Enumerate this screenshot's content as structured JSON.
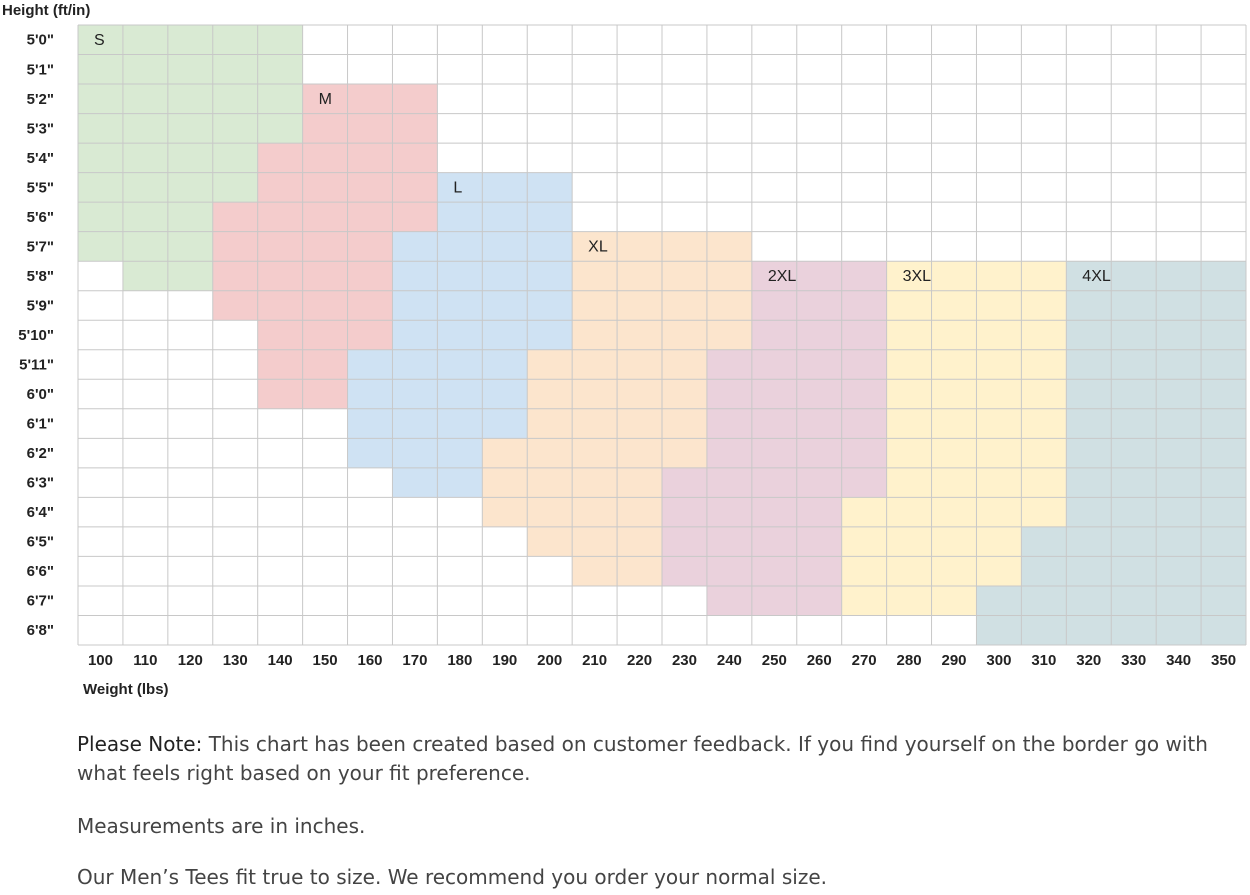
{
  "y_axis_label": "Height (ft/in)",
  "x_axis_label": "Weight (lbs)",
  "heights": [
    "5'0\"",
    "5'1\"",
    "5'2\"",
    "5'3\"",
    "5'4\"",
    "5'5\"",
    "5'6\"",
    "5'7\"",
    "5'8\"",
    "5'9\"",
    "5'10\"",
    "5'11\"",
    "6'0\"",
    "6'1\"",
    "6'2\"",
    "6'3\"",
    "6'4\"",
    "6'5\"",
    "6'6\"",
    "6'7\"",
    "6'8\""
  ],
  "weights": [
    100,
    110,
    120,
    130,
    140,
    150,
    160,
    170,
    180,
    190,
    200,
    210,
    220,
    230,
    240,
    250,
    260,
    270,
    280,
    290,
    300,
    310,
    320,
    330,
    340,
    350
  ],
  "sizes": [
    {
      "name": "S",
      "color": "#d9ead3",
      "spans": [
        [
          "5'0\"",
          100,
          140
        ],
        [
          "5'1\"",
          100,
          140
        ],
        [
          "5'2\"",
          100,
          140
        ],
        [
          "5'3\"",
          100,
          140
        ],
        [
          "5'4\"",
          100,
          130
        ],
        [
          "5'5\"",
          100,
          130
        ],
        [
          "5'6\"",
          100,
          120
        ],
        [
          "5'7\"",
          100,
          120
        ],
        [
          "5'8\"",
          110,
          120
        ]
      ]
    },
    {
      "name": "M",
      "color": "#f4cccc",
      "spans": [
        [
          "5'2\"",
          150,
          170
        ],
        [
          "5'3\"",
          150,
          170
        ],
        [
          "5'4\"",
          140,
          170
        ],
        [
          "5'5\"",
          140,
          170
        ],
        [
          "5'6\"",
          130,
          170
        ],
        [
          "5'7\"",
          130,
          160
        ],
        [
          "5'8\"",
          130,
          160
        ],
        [
          "5'9\"",
          130,
          160
        ],
        [
          "5'10\"",
          140,
          160
        ],
        [
          "5'11\"",
          140,
          150
        ],
        [
          "6'0\"",
          140,
          150
        ]
      ]
    },
    {
      "name": "L",
      "color": "#cfe2f3",
      "spans": [
        [
          "5'5\"",
          180,
          200
        ],
        [
          "5'6\"",
          180,
          200
        ],
        [
          "5'7\"",
          170,
          200
        ],
        [
          "5'8\"",
          170,
          200
        ],
        [
          "5'9\"",
          170,
          200
        ],
        [
          "5'10\"",
          170,
          200
        ],
        [
          "5'11\"",
          160,
          190
        ],
        [
          "6'0\"",
          160,
          190
        ],
        [
          "6'1\"",
          160,
          190
        ],
        [
          "6'2\"",
          160,
          180
        ],
        [
          "6'3\"",
          170,
          180
        ]
      ]
    },
    {
      "name": "XL",
      "color": "#fce5cd",
      "spans": [
        [
          "5'7\"",
          210,
          240
        ],
        [
          "5'8\"",
          210,
          240
        ],
        [
          "5'9\"",
          210,
          240
        ],
        [
          "5'10\"",
          210,
          240
        ],
        [
          "5'11\"",
          200,
          230
        ],
        [
          "6'0\"",
          200,
          230
        ],
        [
          "6'1\"",
          200,
          230
        ],
        [
          "6'2\"",
          190,
          230
        ],
        [
          "6'3\"",
          190,
          220
        ],
        [
          "6'4\"",
          190,
          220
        ],
        [
          "6'5\"",
          200,
          220
        ],
        [
          "6'6\"",
          210,
          220
        ]
      ]
    },
    {
      "name": "2XL",
      "color": "#ead1dc",
      "spans": [
        [
          "5'8\"",
          250,
          270
        ],
        [
          "5'9\"",
          250,
          270
        ],
        [
          "5'10\"",
          250,
          270
        ],
        [
          "5'11\"",
          240,
          270
        ],
        [
          "6'0\"",
          240,
          270
        ],
        [
          "6'1\"",
          240,
          270
        ],
        [
          "6'2\"",
          240,
          270
        ],
        [
          "6'3\"",
          230,
          270
        ],
        [
          "6'4\"",
          230,
          260
        ],
        [
          "6'5\"",
          230,
          260
        ],
        [
          "6'6\"",
          230,
          260
        ],
        [
          "6'7\"",
          240,
          260
        ]
      ]
    },
    {
      "name": "3XL",
      "color": "#fff2cc",
      "spans": [
        [
          "5'8\"",
          280,
          310
        ],
        [
          "5'9\"",
          280,
          310
        ],
        [
          "5'10\"",
          280,
          310
        ],
        [
          "5'11\"",
          280,
          310
        ],
        [
          "6'0\"",
          280,
          310
        ],
        [
          "6'1\"",
          280,
          310
        ],
        [
          "6'2\"",
          280,
          310
        ],
        [
          "6'3\"",
          280,
          310
        ],
        [
          "6'4\"",
          270,
          310
        ],
        [
          "6'5\"",
          270,
          300
        ],
        [
          "6'6\"",
          270,
          300
        ],
        [
          "6'7\"",
          270,
          290
        ]
      ]
    },
    {
      "name": "4XL",
      "color": "#d0e0e3",
      "spans": [
        [
          "5'8\"",
          320,
          350
        ],
        [
          "5'9\"",
          320,
          350
        ],
        [
          "5'10\"",
          320,
          350
        ],
        [
          "5'11\"",
          320,
          350
        ],
        [
          "6'0\"",
          320,
          350
        ],
        [
          "6'1\"",
          320,
          350
        ],
        [
          "6'2\"",
          320,
          350
        ],
        [
          "6'3\"",
          320,
          350
        ],
        [
          "6'4\"",
          320,
          350
        ],
        [
          "6'5\"",
          310,
          350
        ],
        [
          "6'6\"",
          310,
          350
        ],
        [
          "6'7\"",
          300,
          350
        ],
        [
          "6'8\"",
          300,
          350
        ]
      ]
    }
  ],
  "notes": {
    "note_label": "Please Note:",
    "note_text": "This chart has been created based on customer feedback. If you find yourself on the border go with what feels right based on your fit preference.",
    "measurements": "Measurements are in inches.",
    "fit": "Our Men’s Tees fit true to size. We recommend you order your normal size."
  }
}
